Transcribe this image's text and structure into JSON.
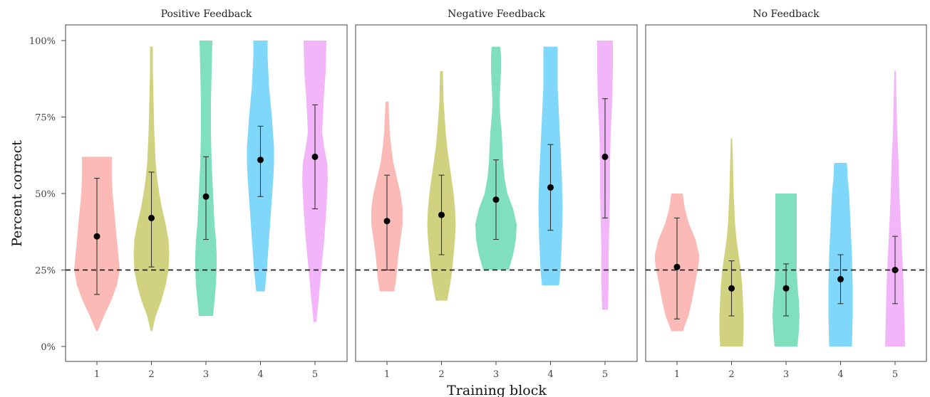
{
  "chart_data": {
    "type": "violin",
    "ylabel": "Percent correct",
    "xlabel": "Training block",
    "ylim": [
      0,
      100
    ],
    "yticks": [
      0,
      25,
      50,
      75,
      100
    ],
    "ytick_labels": [
      "0%",
      "25%",
      "50%",
      "75%",
      "100%"
    ],
    "categories": [
      "1",
      "2",
      "3",
      "4",
      "5"
    ],
    "reference_line": 25,
    "colors": [
      "#F8766D",
      "#A3A500",
      "#00BF7D",
      "#00B0F6",
      "#E76BF3"
    ],
    "panels": [
      {
        "title": "Positive Feedback",
        "groups": [
          {
            "category": "1",
            "mean": 36,
            "err_low": 17,
            "err_high": 55,
            "violin": [
              [
                5,
                1
              ],
              [
                10,
                10
              ],
              [
                15,
                20
              ],
              [
                20,
                28
              ],
              [
                25,
                32
              ],
              [
                30,
                30
              ],
              [
                35,
                28
              ],
              [
                40,
                26
              ],
              [
                45,
                24
              ],
              [
                50,
                22
              ],
              [
                55,
                21
              ],
              [
                60,
                21
              ],
              [
                62,
                21
              ]
            ]
          },
          {
            "category": "2",
            "mean": 42,
            "err_low": 26,
            "err_high": 57,
            "violin": [
              [
                5,
                1
              ],
              [
                10,
                6
              ],
              [
                15,
                14
              ],
              [
                20,
                20
              ],
              [
                25,
                24
              ],
              [
                30,
                25
              ],
              [
                35,
                24
              ],
              [
                40,
                20
              ],
              [
                45,
                15
              ],
              [
                50,
                11
              ],
              [
                55,
                8
              ],
              [
                60,
                6
              ],
              [
                70,
                4
              ],
              [
                80,
                3
              ],
              [
                90,
                2
              ],
              [
                98,
                2
              ]
            ]
          },
          {
            "category": "3",
            "mean": 49,
            "err_low": 35,
            "err_high": 62,
            "violin": [
              [
                10,
                10
              ],
              [
                15,
                12
              ],
              [
                20,
                14
              ],
              [
                25,
                15
              ],
              [
                30,
                15
              ],
              [
                35,
                14
              ],
              [
                40,
                12
              ],
              [
                45,
                11
              ],
              [
                50,
                10
              ],
              [
                55,
                9
              ],
              [
                60,
                8
              ],
              [
                70,
                7
              ],
              [
                80,
                7
              ],
              [
                90,
                8
              ],
              [
                100,
                9
              ]
            ]
          },
          {
            "category": "4",
            "mean": 61,
            "err_low": 49,
            "err_high": 72,
            "violin": [
              [
                18,
                6
              ],
              [
                25,
                9
              ],
              [
                35,
                12
              ],
              [
                45,
                15
              ],
              [
                55,
                18
              ],
              [
                60,
                19
              ],
              [
                65,
                19
              ],
              [
                75,
                16
              ],
              [
                85,
                12
              ],
              [
                95,
                10
              ],
              [
                100,
                10
              ]
            ]
          },
          {
            "category": "5",
            "mean": 62,
            "err_low": 45,
            "err_high": 79,
            "violin": [
              [
                8,
                2
              ],
              [
                15,
                5
              ],
              [
                25,
                9
              ],
              [
                35,
                13
              ],
              [
                45,
                16
              ],
              [
                55,
                18
              ],
              [
                60,
                17
              ],
              [
                65,
                13
              ],
              [
                70,
                10
              ],
              [
                80,
                12
              ],
              [
                90,
                15
              ],
              [
                100,
                16
              ]
            ]
          }
        ]
      },
      {
        "title": "Negative Feedback",
        "groups": [
          {
            "category": "1",
            "mean": 41,
            "err_low": 25,
            "err_high": 56,
            "violin": [
              [
                18,
                10
              ],
              [
                22,
                13
              ],
              [
                25,
                14
              ],
              [
                30,
                16
              ],
              [
                35,
                19
              ],
              [
                40,
                22
              ],
              [
                45,
                22
              ],
              [
                50,
                19
              ],
              [
                55,
                14
              ],
              [
                60,
                9
              ],
              [
                65,
                6
              ],
              [
                70,
                4
              ],
              [
                75,
                3
              ],
              [
                80,
                2
              ]
            ]
          },
          {
            "category": "2",
            "mean": 43,
            "err_low": 30,
            "err_high": 56,
            "violin": [
              [
                15,
                8
              ],
              [
                20,
                12
              ],
              [
                25,
                15
              ],
              [
                30,
                17
              ],
              [
                35,
                19
              ],
              [
                40,
                20
              ],
              [
                45,
                19
              ],
              [
                50,
                17
              ],
              [
                55,
                14
              ],
              [
                60,
                11
              ],
              [
                65,
                8
              ],
              [
                70,
                6
              ],
              [
                80,
                3
              ],
              [
                90,
                2
              ]
            ]
          },
          {
            "category": "3",
            "mean": 48,
            "err_low": 35,
            "err_high": 61,
            "violin": [
              [
                25,
                18
              ],
              [
                30,
                24
              ],
              [
                35,
                28
              ],
              [
                40,
                29
              ],
              [
                45,
                24
              ],
              [
                50,
                16
              ],
              [
                55,
                12
              ],
              [
                60,
                10
              ],
              [
                65,
                9
              ],
              [
                70,
                8
              ],
              [
                75,
                6
              ],
              [
                80,
                5
              ],
              [
                85,
                6
              ],
              [
                90,
                7
              ],
              [
                95,
                7
              ],
              [
                98,
                6
              ]
            ]
          },
          {
            "category": "4",
            "mean": 52,
            "err_low": 38,
            "err_high": 66,
            "violin": [
              [
                20,
                12
              ],
              [
                25,
                14
              ],
              [
                35,
                16
              ],
              [
                45,
                17
              ],
              [
                55,
                16
              ],
              [
                65,
                14
              ],
              [
                75,
                12
              ],
              [
                85,
                10
              ],
              [
                95,
                10
              ],
              [
                98,
                10
              ]
            ]
          },
          {
            "category": "5",
            "mean": 62,
            "err_low": 42,
            "err_high": 81,
            "violin": [
              [
                12,
                4
              ],
              [
                20,
                5
              ],
              [
                30,
                5
              ],
              [
                40,
                6
              ],
              [
                50,
                7
              ],
              [
                60,
                7
              ],
              [
                70,
                8
              ],
              [
                80,
                10
              ],
              [
                90,
                11
              ],
              [
                100,
                11
              ]
            ]
          }
        ]
      },
      {
        "title": "No Feedback",
        "groups": [
          {
            "category": "1",
            "mean": 26,
            "err_low": 9,
            "err_high": 42,
            "violin": [
              [
                5,
                8
              ],
              [
                10,
                16
              ],
              [
                15,
                21
              ],
              [
                20,
                25
              ],
              [
                25,
                29
              ],
              [
                28,
                31
              ],
              [
                30,
                31
              ],
              [
                35,
                26
              ],
              [
                40,
                17
              ],
              [
                45,
                11
              ],
              [
                50,
                8
              ]
            ]
          },
          {
            "category": "2",
            "mean": 19,
            "err_low": 10,
            "err_high": 28,
            "violin": [
              [
                0,
                16
              ],
              [
                5,
                17
              ],
              [
                10,
                17
              ],
              [
                15,
                16
              ],
              [
                20,
                15
              ],
              [
                25,
                13
              ],
              [
                30,
                10
              ],
              [
                35,
                7
              ],
              [
                40,
                5
              ],
              [
                50,
                3
              ],
              [
                60,
                2
              ],
              [
                68,
                1
              ]
            ]
          },
          {
            "category": "3",
            "mean": 19,
            "err_low": 10,
            "err_high": 27,
            "violin": [
              [
                0,
                16
              ],
              [
                5,
                18
              ],
              [
                10,
                19
              ],
              [
                15,
                18
              ],
              [
                20,
                16
              ],
              [
                25,
                15
              ],
              [
                30,
                15
              ],
              [
                35,
                15
              ],
              [
                40,
                15
              ],
              [
                45,
                15
              ],
              [
                50,
                15
              ]
            ]
          },
          {
            "category": "4",
            "mean": 22,
            "err_low": 14,
            "err_high": 30,
            "violin": [
              [
                0,
                16
              ],
              [
                10,
                17
              ],
              [
                20,
                17
              ],
              [
                30,
                16
              ],
              [
                40,
                14
              ],
              [
                50,
                12
              ],
              [
                55,
                10
              ],
              [
                60,
                9
              ]
            ]
          },
          {
            "category": "5",
            "mean": 25,
            "err_low": 14,
            "err_high": 36,
            "violin": [
              [
                0,
                14
              ],
              [
                10,
                13
              ],
              [
                20,
                12
              ],
              [
                30,
                10
              ],
              [
                40,
                8
              ],
              [
                50,
                6
              ],
              [
                60,
                5
              ],
              [
                70,
                3
              ],
              [
                80,
                2
              ],
              [
                90,
                1
              ]
            ]
          }
        ]
      }
    ]
  }
}
